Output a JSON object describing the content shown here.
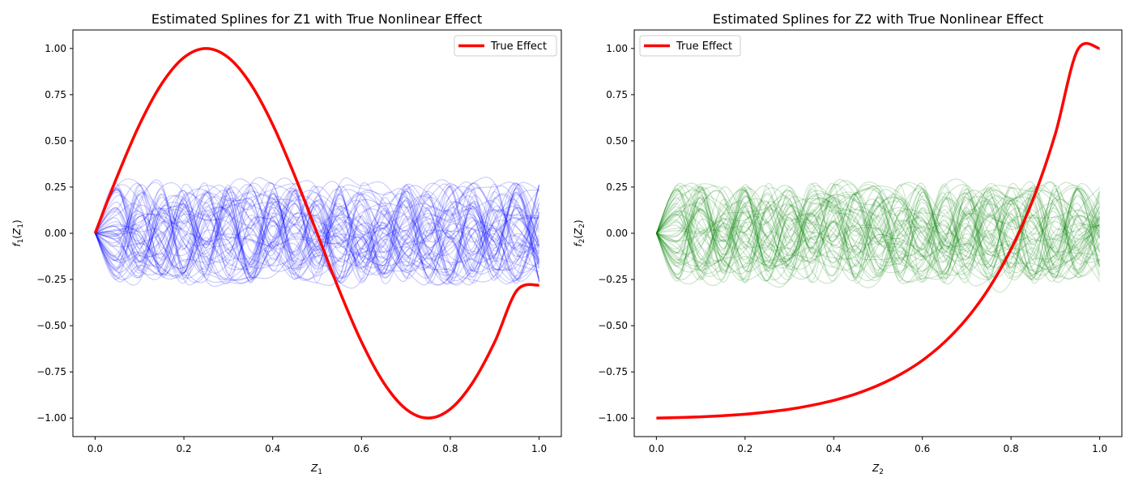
{
  "figure": {
    "background": "#ffffff"
  },
  "chart_data": [
    {
      "type": "line",
      "title": "Estimated Splines for Z1 with True Nonlinear Effect",
      "xlabel": {
        "base": "Z",
        "sub": "1"
      },
      "ylabel": {
        "fn": "f",
        "fn_sub": "1",
        "arg": "Z",
        "arg_sub": "1"
      },
      "xlim": [
        -0.05,
        1.05
      ],
      "ylim": [
        -1.1,
        1.1
      ],
      "xticks": [
        0.0,
        0.2,
        0.4,
        0.6,
        0.8,
        1.0
      ],
      "xtick_labels": [
        "0.0",
        "0.2",
        "0.4",
        "0.6",
        "0.8",
        "1.0"
      ],
      "yticks": [
        -1.0,
        -0.75,
        -0.5,
        -0.25,
        0.0,
        0.25,
        0.5,
        0.75,
        1.0
      ],
      "ytick_labels": [
        "−1.00",
        "−0.75",
        "−0.50",
        "−0.25",
        "0.00",
        "0.25",
        "0.50",
        "0.75",
        "1.00"
      ],
      "legend": {
        "position": "upper right",
        "entries": [
          "True Effect"
        ]
      },
      "true_effect": {
        "name": "True Effect",
        "color": "#ff0000",
        "x": [
          0.0,
          0.05,
          0.1,
          0.15,
          0.2,
          0.25,
          0.3,
          0.35,
          0.4,
          0.45,
          0.5,
          0.55,
          0.6,
          0.65,
          0.7,
          0.75,
          0.8,
          0.85,
          0.9,
          0.95,
          1.0
        ],
        "y": [
          0.0,
          0.309,
          0.588,
          0.809,
          0.951,
          1.0,
          0.951,
          0.809,
          0.588,
          0.309,
          0.0,
          -0.309,
          -0.588,
          -0.809,
          -0.951,
          -1.0,
          -0.951,
          -0.809,
          -0.588,
          -0.309,
          -0.28
        ]
      },
      "spline_group": {
        "color": "#0000ff",
        "opacity": 0.2,
        "count": 60,
        "x": [
          0.0,
          0.05,
          0.1,
          0.15,
          0.2,
          0.25,
          0.3,
          0.35,
          0.4,
          0.45,
          0.5,
          0.55,
          0.6,
          0.65,
          0.7,
          0.75,
          0.8,
          0.85,
          0.9,
          0.95,
          1.0
        ],
        "y_range": [
          -0.27,
          0.27
        ],
        "start_value": 0.0
      }
    },
    {
      "type": "line",
      "title": "Estimated Splines for Z2 with True Nonlinear Effect",
      "xlabel": {
        "base": "Z",
        "sub": "2"
      },
      "ylabel": {
        "fn": "f",
        "fn_sub": "2",
        "arg": "Z",
        "arg_sub": "2"
      },
      "xlim": [
        -0.05,
        1.05
      ],
      "ylim": [
        -1.1,
        1.1
      ],
      "xticks": [
        0.0,
        0.2,
        0.4,
        0.6,
        0.8,
        1.0
      ],
      "xtick_labels": [
        "0.0",
        "0.2",
        "0.4",
        "0.6",
        "0.8",
        "1.0"
      ],
      "yticks": [
        -1.0,
        -0.75,
        -0.5,
        -0.25,
        0.0,
        0.25,
        0.5,
        0.75,
        1.0
      ],
      "ytick_labels": [
        "−1.00",
        "−0.75",
        "−0.50",
        "−0.25",
        "0.00",
        "0.25",
        "0.50",
        "0.75",
        "1.00"
      ],
      "legend": {
        "position": "upper left",
        "entries": [
          "True Effect"
        ]
      },
      "true_effect": {
        "name": "True Effect",
        "color": "#ff0000",
        "x": [
          0.0,
          0.05,
          0.1,
          0.15,
          0.2,
          0.25,
          0.3,
          0.35,
          0.4,
          0.45,
          0.5,
          0.55,
          0.6,
          0.65,
          0.7,
          0.75,
          0.8,
          0.85,
          0.9,
          0.95,
          1.0
        ],
        "y": [
          -1.0,
          -0.997,
          -0.993,
          -0.987,
          -0.979,
          -0.967,
          -0.952,
          -0.931,
          -0.904,
          -0.869,
          -0.823,
          -0.764,
          -0.688,
          -0.589,
          -0.462,
          -0.298,
          -0.086,
          0.186,
          0.538,
          0.991,
          1.0
        ]
      },
      "spline_group": {
        "color": "#008000",
        "opacity": 0.2,
        "count": 60,
        "x": [
          0.0,
          0.05,
          0.1,
          0.15,
          0.2,
          0.25,
          0.3,
          0.35,
          0.4,
          0.45,
          0.5,
          0.55,
          0.6,
          0.65,
          0.7,
          0.75,
          0.8,
          0.85,
          0.9,
          0.95,
          1.0
        ],
        "y_range": [
          -0.27,
          0.27
        ],
        "start_value": 0.0
      }
    }
  ]
}
